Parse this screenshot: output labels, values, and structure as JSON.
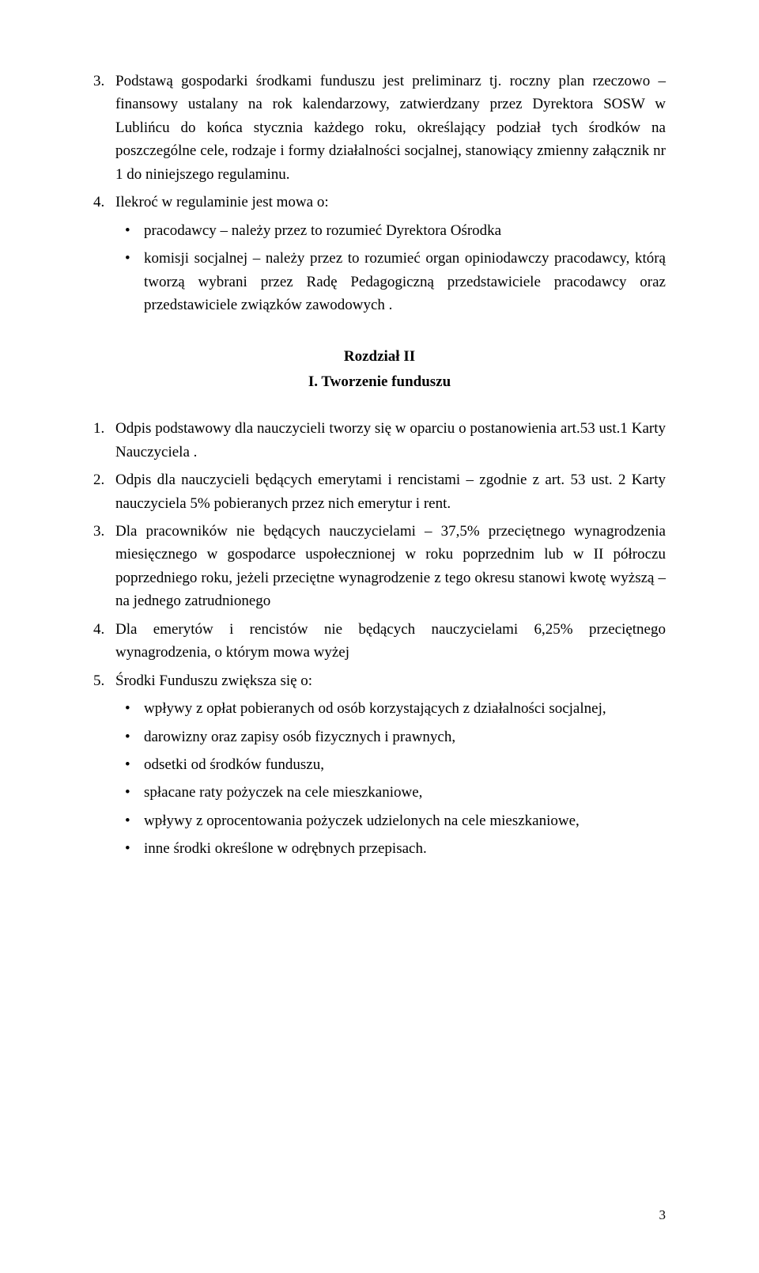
{
  "page_number": "3",
  "n3": {
    "num": "3.",
    "text": "Podstawą gospodarki środkami funduszu jest preliminarz tj. roczny plan rzeczowo – finansowy ustalany na rok kalendarzowy, zatwierdzany przez Dyrektora SOSW w Lublińcu do końca stycznia każdego roku, określający podział tych środków na poszczególne cele, rodzaje i formy działalności socjalnej, stanowiący zmienny załącznik nr 1 do niniejszego regulaminu."
  },
  "n4": {
    "num": "4.",
    "text": "Ilekroć w regulaminie jest mowa o:"
  },
  "n4_b1": "pracodawcy – należy przez to rozumieć Dyrektora Ośrodka",
  "n4_b2": "komisji socjalnej – należy przez to rozumieć organ opiniodawczy pracodawcy, którą tworzą wybrani przez Radę Pedagogiczną przedstawiciele pracodawcy oraz przedstawiciele związków zawodowych .",
  "chapter": "Rozdział II",
  "chapter_sub": "I. Tworzenie funduszu",
  "r1": {
    "num": "1.",
    "text": "Odpis podstawowy dla nauczycieli tworzy się w oparciu o postanowienia art.53 ust.1 Karty Nauczyciela ."
  },
  "r2": {
    "num": "2.",
    "text": "Odpis dla nauczycieli będących emerytami i rencistami – zgodnie z art. 53 ust. 2 Karty nauczyciela 5% pobieranych przez nich emerytur i rent."
  },
  "r3": {
    "num": "3.",
    "text": "Dla pracowników nie będących nauczycielami – 37,5% przeciętnego wynagrodzenia miesięcznego w gospodarce uspołecznionej w roku poprzednim lub w II półroczu poprzedniego roku, jeżeli przeciętne wynagrodzenie z tego okresu stanowi kwotę wyższą – na jednego zatrudnionego"
  },
  "r4": {
    "num": "4.",
    "text": "Dla emerytów i rencistów nie będących nauczycielami 6,25% przeciętnego wynagrodzenia, o którym mowa wyżej"
  },
  "r5": {
    "num": "5.",
    "text": "Środki Funduszu zwiększa się o:"
  },
  "r5_b1": "wpływy z opłat pobieranych od osób korzystających z działalności socjalnej,",
  "r5_b2": "darowizny oraz zapisy osób fizycznych i prawnych,",
  "r5_b3": "odsetki od środków funduszu,",
  "r5_b4": "spłacane raty pożyczek na cele mieszkaniowe,",
  "r5_b5": "wpływy z oprocentowania pożyczek udzielonych na cele mieszkaniowe,",
  "r5_b6": "inne środki określone w odrębnych przepisach."
}
